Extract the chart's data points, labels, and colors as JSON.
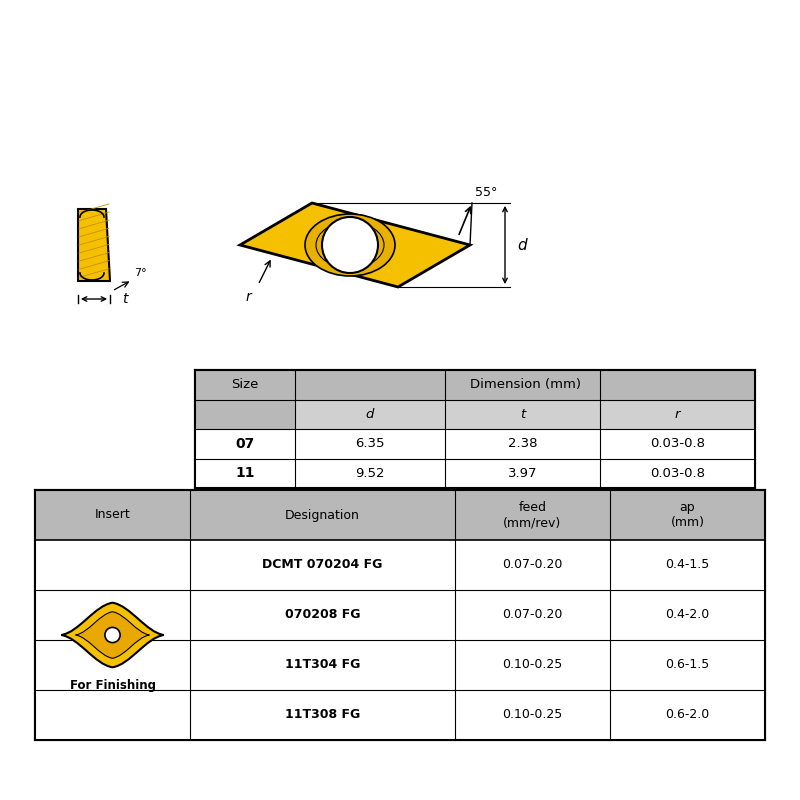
{
  "bg_color": "#ffffff",
  "gold_color": "#F5C000",
  "gold_dark": "#C89000",
  "black": "#000000",
  "gray_header": "#B8B8B8",
  "gray_light": "#D0D0D0",
  "table1": {
    "title": "Dimension (mm)",
    "col_headers": [
      "d",
      "t",
      "r"
    ],
    "row_headers": [
      "07",
      "11"
    ],
    "data": [
      [
        "6.35",
        "2.38",
        "0.03-0.8"
      ],
      [
        "9.52",
        "3.97",
        "0.03-0.8"
      ]
    ]
  },
  "table2": {
    "col_headers": [
      "Insert",
      "Designation",
      "feed\n(mm/rev)",
      "ap\n(mm)"
    ],
    "rows": [
      [
        "DCMT 070204 FG",
        "0.07-0.20",
        "0.4-1.5"
      ],
      [
        "070208 FG",
        "0.07-0.20",
        "0.4-2.0"
      ],
      [
        "11T304 FG",
        "0.10-0.25",
        "0.6-1.5"
      ],
      [
        "11T308 FG",
        "0.10-0.25",
        "0.6-2.0"
      ]
    ],
    "insert_label": "For Finishing"
  },
  "angle_label": "55°",
  "d_label": "d",
  "r_label": "r",
  "t_label": "t",
  "angle7_label": "7°"
}
